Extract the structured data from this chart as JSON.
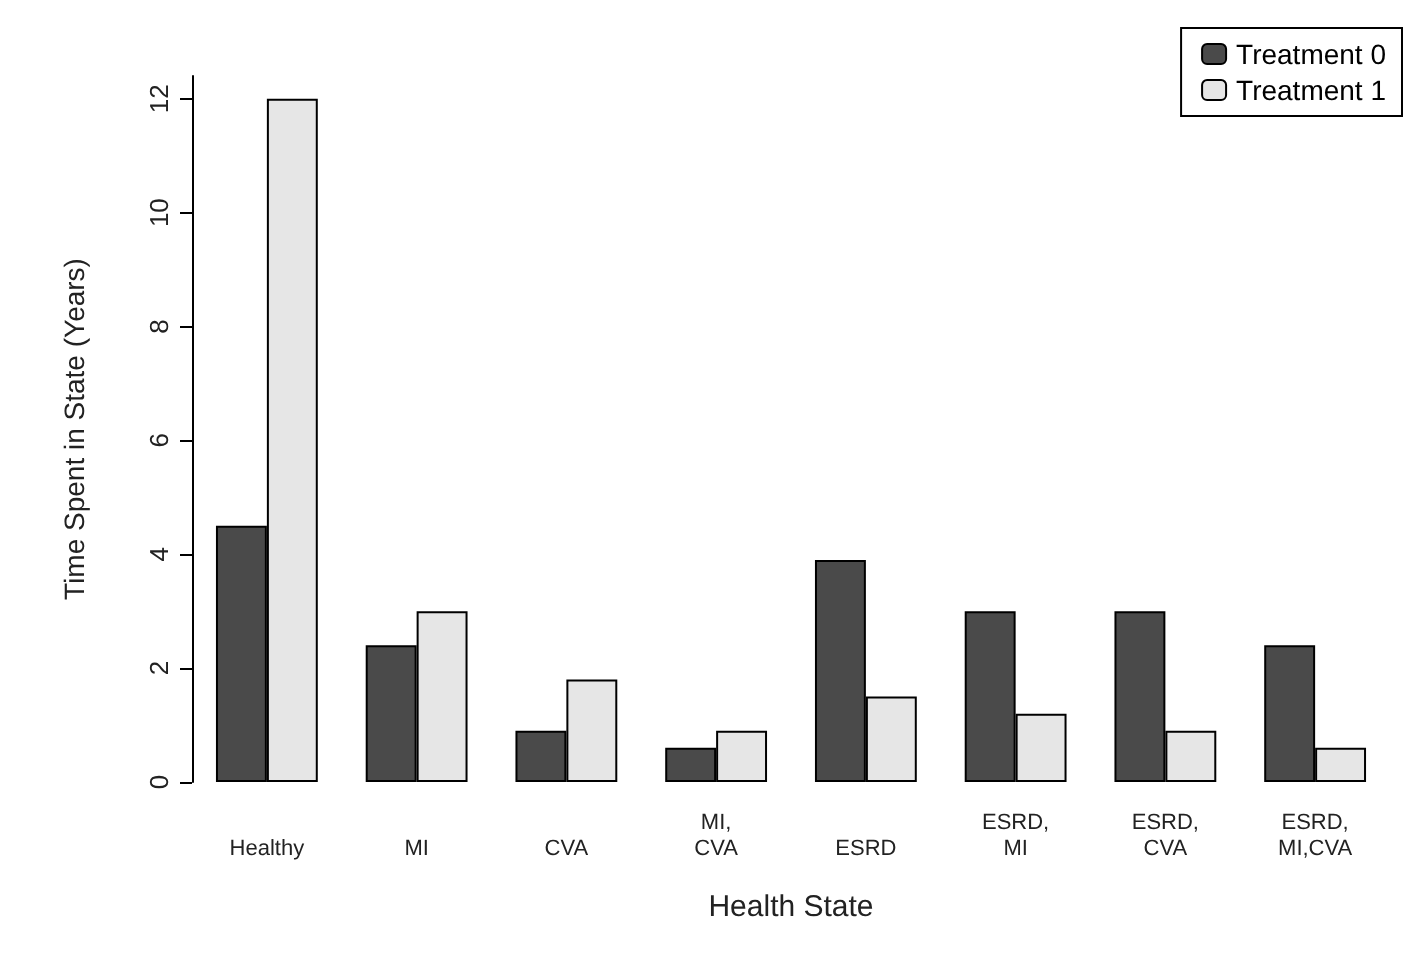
{
  "chart_data": {
    "type": "bar",
    "xlabel": "Health State",
    "ylabel": "Time Spent in State (Years)",
    "categories": [
      "Healthy",
      "MI",
      "CVA",
      "MI,\nCVA",
      "ESRD",
      "ESRD,\nMI",
      "ESRD,\nCVA",
      "ESRD,\nMI,CVA"
    ],
    "series": [
      {
        "name": "Treatment 0",
        "color": "#4a4a4a",
        "values": [
          4.5,
          2.4,
          0.9,
          0.6,
          3.9,
          3.0,
          3.0,
          2.4
        ]
      },
      {
        "name": "Treatment 1",
        "color": "#e6e6e6",
        "values": [
          12,
          3.0,
          1.8,
          0.9,
          1.5,
          1.2,
          0.9,
          0.6
        ]
      }
    ],
    "ylim": [
      0,
      12.4
    ],
    "yticks": [
      0,
      2,
      4,
      6,
      8,
      10,
      12
    ],
    "grid": false,
    "legend": "top right"
  }
}
